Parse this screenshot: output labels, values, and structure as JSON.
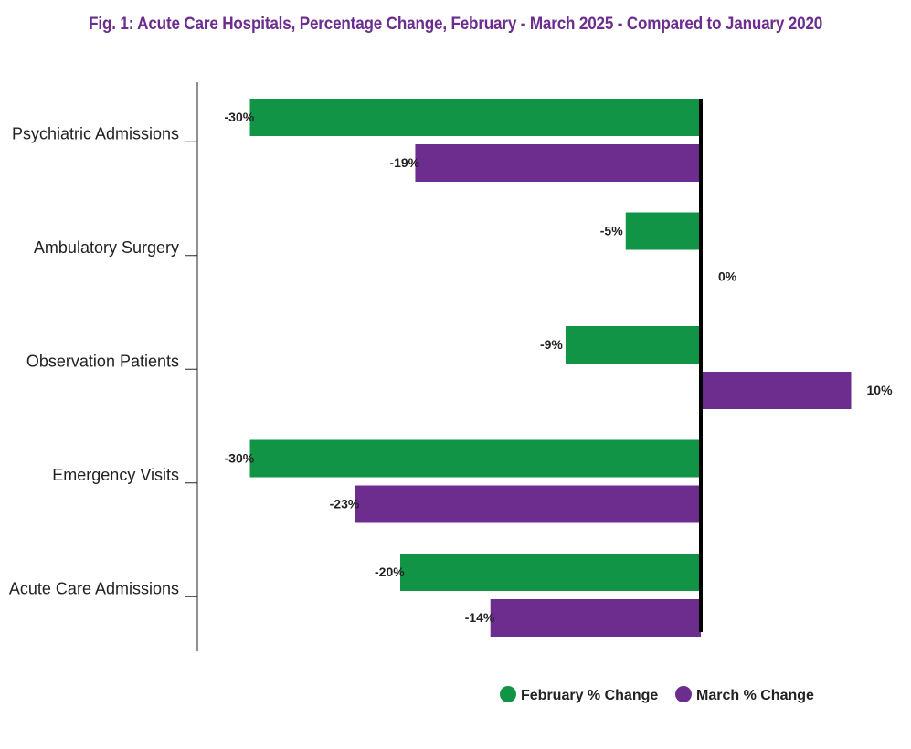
{
  "chart_data": {
    "type": "bar",
    "orientation": "horizontal",
    "title": "Fig. 1: Acute Care Hospitals, Percentage Change, February -  March 2025 - Compared to January 2020",
    "categories": [
      "Psychiatric Admissions",
      "Ambulatory Surgery",
      "Observation Patients",
      "Emergency Visits",
      "Acute Care Admissions"
    ],
    "series": [
      {
        "name": "February % Change",
        "color": "#129447",
        "values": [
          -30,
          -5,
          -9,
          -30,
          -20
        ]
      },
      {
        "name": "March % Change",
        "color": "#6c2d8e",
        "values": [
          -19,
          0,
          10,
          -23,
          -14
        ]
      }
    ],
    "value_suffix": "%",
    "xlim": [
      -33.4,
      13
    ],
    "grid": false,
    "legend": "bottom",
    "title_color": "#6c2d8e"
  }
}
